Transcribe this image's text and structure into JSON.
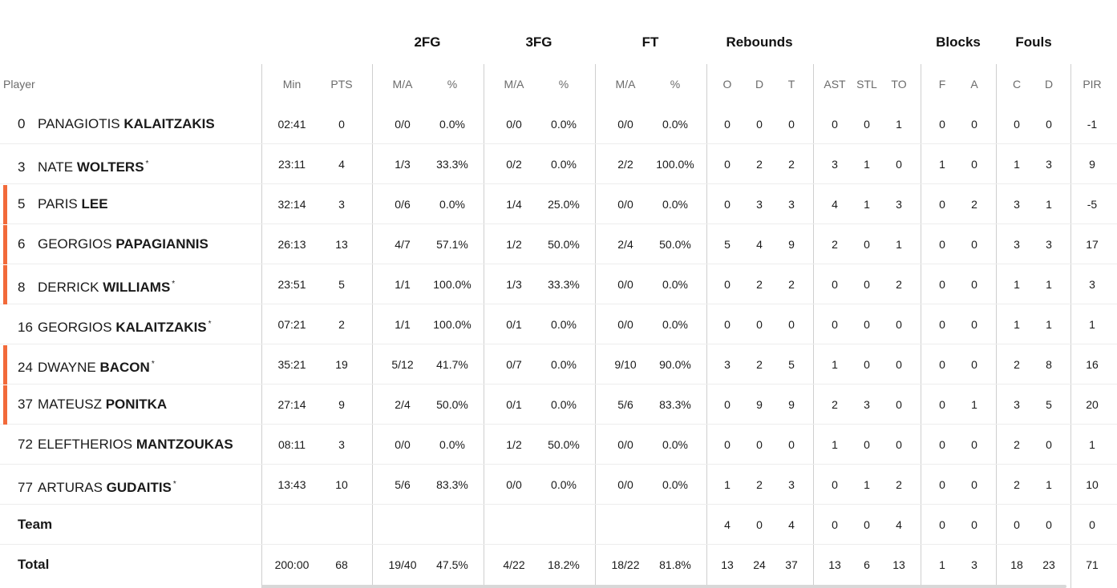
{
  "header_groups": [
    "2FG",
    "3FG",
    "FT",
    "Rebounds",
    "Blocks",
    "Fouls"
  ],
  "columns": [
    "Player",
    "Min",
    "PTS",
    "M/A",
    "%",
    "M/A",
    "%",
    "M/A",
    "%",
    "O",
    "D",
    "T",
    "AST",
    "STL",
    "TO",
    "F",
    "A",
    "C",
    "D",
    "PIR"
  ],
  "players": [
    {
      "number": "0",
      "first": "PANAGIOTIS",
      "last": "KALAITZAKIS",
      "star": false,
      "on_court": false,
      "stats": [
        "02:41",
        "0",
        "0/0",
        "0.0%",
        "0/0",
        "0.0%",
        "0/0",
        "0.0%",
        "0",
        "0",
        "0",
        "0",
        "0",
        "1",
        "0",
        "0",
        "0",
        "0",
        "-1"
      ]
    },
    {
      "number": "3",
      "first": "NATE",
      "last": "WOLTERS",
      "star": true,
      "on_court": false,
      "stats": [
        "23:11",
        "4",
        "1/3",
        "33.3%",
        "0/2",
        "0.0%",
        "2/2",
        "100.0%",
        "0",
        "2",
        "2",
        "3",
        "1",
        "0",
        "1",
        "0",
        "1",
        "3",
        "9"
      ]
    },
    {
      "number": "5",
      "first": "PARIS",
      "last": "LEE",
      "star": false,
      "on_court": true,
      "stats": [
        "32:14",
        "3",
        "0/6",
        "0.0%",
        "1/4",
        "25.0%",
        "0/0",
        "0.0%",
        "0",
        "3",
        "3",
        "4",
        "1",
        "3",
        "0",
        "2",
        "3",
        "1",
        "-5"
      ]
    },
    {
      "number": "6",
      "first": "GEORGIOS",
      "last": "PAPAGIANNIS",
      "star": false,
      "on_court": true,
      "stats": [
        "26:13",
        "13",
        "4/7",
        "57.1%",
        "1/2",
        "50.0%",
        "2/4",
        "50.0%",
        "5",
        "4",
        "9",
        "2",
        "0",
        "1",
        "0",
        "0",
        "3",
        "3",
        "17"
      ]
    },
    {
      "number": "8",
      "first": "DERRICK",
      "last": "WILLIAMS",
      "star": true,
      "on_court": true,
      "stats": [
        "23:51",
        "5",
        "1/1",
        "100.0%",
        "1/3",
        "33.3%",
        "0/0",
        "0.0%",
        "0",
        "2",
        "2",
        "0",
        "0",
        "2",
        "0",
        "0",
        "1",
        "1",
        "3"
      ]
    },
    {
      "number": "16",
      "first": "GEORGIOS",
      "last": "KALAITZAKIS",
      "star": true,
      "on_court": false,
      "stats": [
        "07:21",
        "2",
        "1/1",
        "100.0%",
        "0/1",
        "0.0%",
        "0/0",
        "0.0%",
        "0",
        "0",
        "0",
        "0",
        "0",
        "0",
        "0",
        "0",
        "1",
        "1",
        "1"
      ]
    },
    {
      "number": "24",
      "first": "DWAYNE",
      "last": "BACON",
      "star": true,
      "on_court": true,
      "stats": [
        "35:21",
        "19",
        "5/12",
        "41.7%",
        "0/7",
        "0.0%",
        "9/10",
        "90.0%",
        "3",
        "2",
        "5",
        "1",
        "0",
        "0",
        "0",
        "0",
        "2",
        "8",
        "16"
      ]
    },
    {
      "number": "37",
      "first": "MATEUSZ",
      "last": "PONITKA",
      "star": false,
      "on_court": true,
      "stats": [
        "27:14",
        "9",
        "2/4",
        "50.0%",
        "0/1",
        "0.0%",
        "5/6",
        "83.3%",
        "0",
        "9",
        "9",
        "2",
        "3",
        "0",
        "0",
        "1",
        "3",
        "5",
        "20"
      ]
    },
    {
      "number": "72",
      "first": "ELEFTHERIOS",
      "last": "MANTZOUKAS",
      "star": false,
      "on_court": false,
      "stats": [
        "08:11",
        "3",
        "0/0",
        "0.0%",
        "1/2",
        "50.0%",
        "0/0",
        "0.0%",
        "0",
        "0",
        "0",
        "1",
        "0",
        "0",
        "0",
        "0",
        "2",
        "0",
        "1"
      ]
    },
    {
      "number": "77",
      "first": "ARTURAS",
      "last": "GUDAITIS",
      "star": true,
      "on_court": false,
      "stats": [
        "13:43",
        "10",
        "5/6",
        "83.3%",
        "0/0",
        "0.0%",
        "0/0",
        "0.0%",
        "1",
        "2",
        "3",
        "0",
        "1",
        "2",
        "0",
        "0",
        "2",
        "1",
        "10"
      ]
    }
  ],
  "totals": [
    {
      "label": "Team",
      "stats": [
        "",
        "",
        "",
        "",
        "",
        "",
        "",
        "",
        "4",
        "0",
        "4",
        "0",
        "0",
        "4",
        "0",
        "0",
        "0",
        "0",
        "0"
      ]
    },
    {
      "label": "Total",
      "stats": [
        "200:00",
        "68",
        "19/40",
        "47.5%",
        "4/22",
        "18.2%",
        "18/22",
        "81.8%",
        "13",
        "24",
        "37",
        "13",
        "6",
        "13",
        "1",
        "3",
        "18",
        "23",
        "71"
      ]
    }
  ],
  "star_symbol": "*",
  "colors": {
    "on_court_bar": "#f26a3a",
    "divider": "#cfcfcf",
    "header_text": "#6b6b6b"
  }
}
